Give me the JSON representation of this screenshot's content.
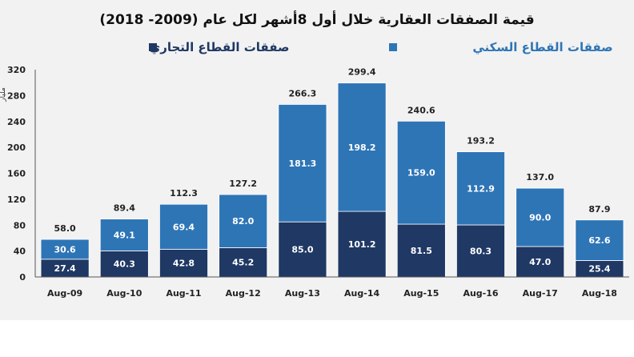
{
  "chart_data": {
    "type": "bar",
    "stacked": true,
    "title": "قيمة الصفقات العقارية خلال أول 8أشهر لكل عام (2009- 2018)",
    "ylabel": "مليار",
    "categories": [
      "Aug-09",
      "Aug-10",
      "Aug-11",
      "Aug-12",
      "Aug-13",
      "Aug-14",
      "Aug-15",
      "Aug-16",
      "Aug-17",
      "Aug-18"
    ],
    "series": [
      {
        "name": "صفقات القطاع التجاري",
        "color": "#1f3864",
        "values": [
          27.4,
          40.3,
          42.8,
          45.2,
          85.0,
          101.2,
          81.5,
          80.3,
          47.0,
          25.4
        ]
      },
      {
        "name": "صفقات القطاع السكني",
        "color": "#2e75b6",
        "values": [
          30.6,
          49.1,
          69.4,
          82.0,
          181.3,
          198.2,
          159.0,
          112.9,
          90.0,
          62.6
        ]
      }
    ],
    "totals": [
      58.0,
      89.4,
      112.3,
      127.2,
      266.3,
      299.4,
      240.6,
      193.2,
      137.0,
      87.9
    ],
    "ylim": [
      0,
      320
    ],
    "yticks": [
      0,
      40,
      80,
      120,
      160,
      200,
      240,
      280,
      320
    ],
    "grid": false,
    "legend_position": "top"
  }
}
